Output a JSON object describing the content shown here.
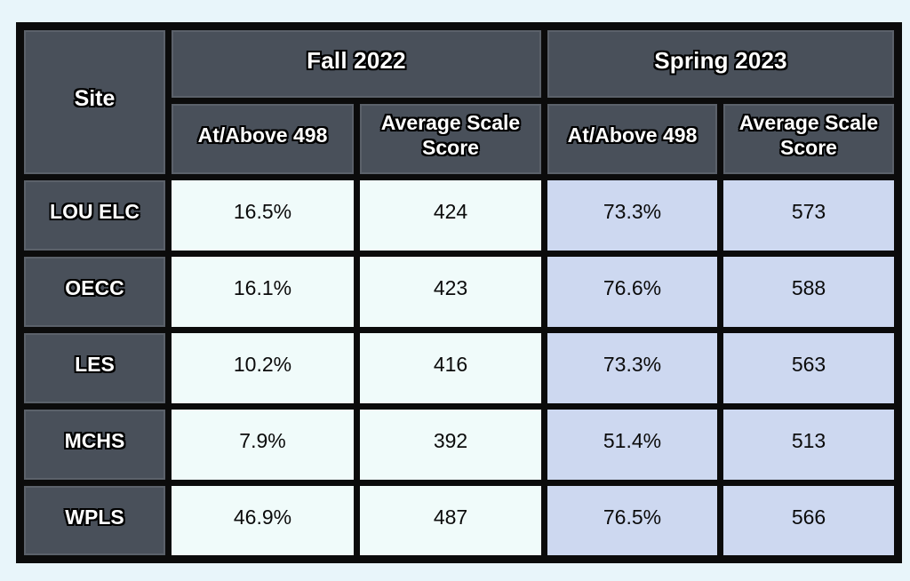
{
  "colors": {
    "page-bg": "#e8f5fa",
    "border": "#0b0b0b",
    "header-bg": "#49505a",
    "header-text": "#ffffff",
    "fall-cell-bg": "#f0fbfa",
    "spring-cell-bg": "#cdd8f0",
    "data-text": "#0b0b0b"
  },
  "table": {
    "site_header": "Site",
    "groups": [
      {
        "label": "Fall 2022",
        "sub": [
          "At/Above 498",
          "Average Scale Score"
        ]
      },
      {
        "label": "Spring 2023",
        "sub": [
          "At/Above 498",
          "Average Scale Score"
        ]
      }
    ],
    "rows": [
      {
        "site": "LOU ELC",
        "values": [
          "16.5%",
          "424",
          "73.3%",
          "573"
        ]
      },
      {
        "site": "OECC",
        "values": [
          "16.1%",
          "423",
          "76.6%",
          "588"
        ]
      },
      {
        "site": "LES",
        "values": [
          "10.2%",
          "416",
          "73.3%",
          "563"
        ]
      },
      {
        "site": "MCHS",
        "values": [
          "7.9%",
          "392",
          "51.4%",
          "513"
        ]
      },
      {
        "site": "WPLS",
        "values": [
          "46.9%",
          "487",
          "76.5%",
          "566"
        ]
      }
    ]
  },
  "chart_data": {
    "type": "table",
    "columns": [
      "Site",
      "Fall 2022 - At/Above 498",
      "Fall 2022 - Average Scale Score",
      "Spring 2023 - At/Above 498",
      "Spring 2023 - Average Scale Score"
    ],
    "rows": [
      [
        "LOU ELC",
        "16.5%",
        424,
        "73.3%",
        573
      ],
      [
        "OECC",
        "16.1%",
        423,
        "76.6%",
        588
      ],
      [
        "LES",
        "10.2%",
        416,
        "73.3%",
        563
      ],
      [
        "MCHS",
        "7.9%",
        392,
        "51.4%",
        513
      ],
      [
        "WPLS",
        "46.9%",
        487,
        "76.5%",
        566
      ]
    ]
  }
}
